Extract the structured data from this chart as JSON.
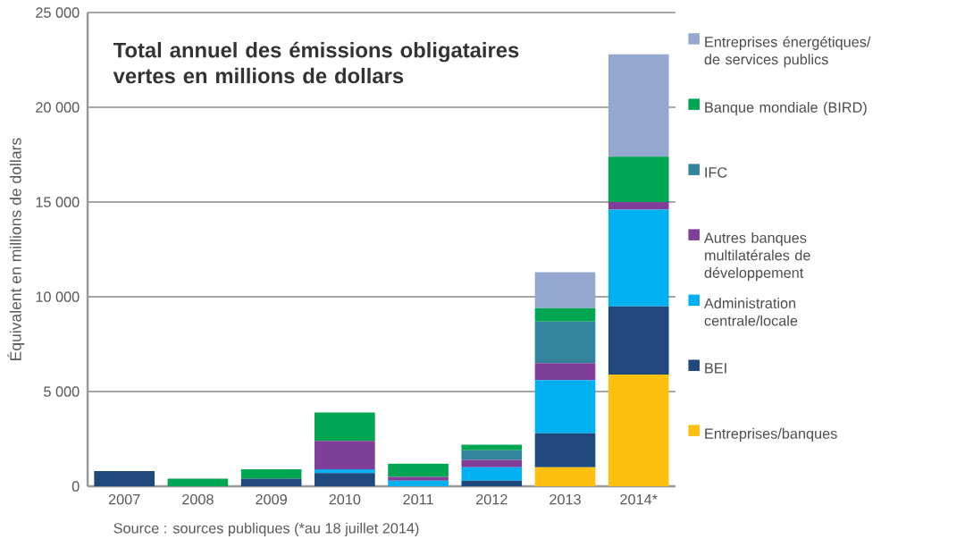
{
  "chart_data": {
    "type": "bar",
    "stacked": true,
    "title": "Total annuel des émissions obligataires vertes en millions de dollars",
    "ylabel": "Équivalent en millions de dollars",
    "annotations": [
      "Source : sources publiques (*au 18 juillet 2014)"
    ],
    "categories": [
      "2007",
      "2008",
      "2009",
      "2010",
      "2011",
      "2012",
      "2013",
      "2014*"
    ],
    "series": [
      {
        "name": "Entreprises/banques",
        "color": "#fdc00f",
        "values": [
          null,
          null,
          null,
          null,
          null,
          null,
          1000,
          5900
        ]
      },
      {
        "name": "BEI",
        "color": "#1f497d",
        "values": [
          800,
          null,
          400,
          700,
          null,
          300,
          1800,
          3600
        ]
      },
      {
        "name": "Administration centrale/locale",
        "color": "#00b0f0",
        "values": [
          null,
          null,
          null,
          200,
          300,
          700,
          2800,
          5100
        ]
      },
      {
        "name": "Autres banques multilatérales de développement",
        "color": "#7f3f98",
        "values": [
          null,
          null,
          null,
          1500,
          200,
          400,
          900,
          400
        ]
      },
      {
        "name": "IFC",
        "color": "#31849b",
        "values": [
          null,
          null,
          null,
          null,
          null,
          500,
          2200,
          null
        ]
      },
      {
        "name": "Banque mondiale (BIRD)",
        "color": "#00a651",
        "values": [
          null,
          400,
          500,
          1500,
          700,
          300,
          700,
          2400
        ]
      },
      {
        "name": "Entreprises énergétiques/ de services publics",
        "color": "#95a8d0",
        "values": [
          null,
          null,
          null,
          null,
          null,
          null,
          1900,
          5400
        ]
      }
    ],
    "ylim": [
      0,
      25000
    ],
    "yticks": [
      0,
      {
        "value": 5000,
        "label": "5 000"
      },
      {
        "value": 10000,
        "label": "10 000"
      },
      {
        "value": 15000,
        "label": "15 000"
      },
      {
        "value": 20000,
        "label": "20 000"
      },
      {
        "value": 25000,
        "label": "25 000"
      }
    ],
    "grid": "y",
    "legend": "right"
  }
}
